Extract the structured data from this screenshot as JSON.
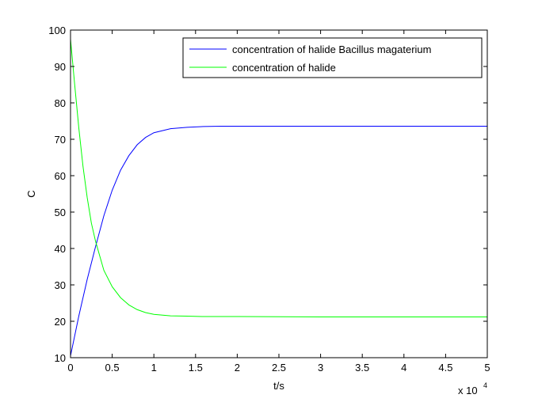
{
  "chart_data": {
    "type": "line",
    "xlabel": "t/s",
    "ylabel": "C",
    "x_multiplier_label": "x 10",
    "x_multiplier_exponent": "4",
    "xlim": [
      0,
      5
    ],
    "ylim": [
      10,
      100
    ],
    "xticks": [
      0,
      0.5,
      1,
      1.5,
      2,
      2.5,
      3,
      3.5,
      4,
      4.5,
      5
    ],
    "xtick_labels": [
      "0",
      "0.5",
      "1",
      "1.5",
      "2",
      "2.5",
      "3",
      "3.5",
      "4",
      "4.5",
      "5"
    ],
    "yticks": [
      10,
      20,
      30,
      40,
      50,
      60,
      70,
      80,
      90,
      100
    ],
    "ytick_labels": [
      "10",
      "20",
      "30",
      "40",
      "50",
      "60",
      "70",
      "80",
      "90",
      "100"
    ],
    "grid": false,
    "legend_position": "top-right",
    "series": [
      {
        "name": "concentration of halide Bacillus magaterium",
        "color": "#0000ff",
        "x": [
          0,
          0.1,
          0.2,
          0.3,
          0.4,
          0.5,
          0.6,
          0.7,
          0.8,
          0.9,
          1.0,
          1.2,
          1.4,
          1.6,
          1.8,
          2.0,
          3.0,
          4.0,
          5.0
        ],
        "y": [
          10.5,
          21.5,
          31.5,
          40.5,
          49.0,
          56.0,
          61.5,
          65.5,
          68.5,
          70.5,
          71.8,
          72.9,
          73.3,
          73.5,
          73.6,
          73.6,
          73.6,
          73.6,
          73.6
        ]
      },
      {
        "name": "concentration of halide",
        "color": "#00ff00",
        "x": [
          0,
          0.05,
          0.1,
          0.15,
          0.2,
          0.25,
          0.3,
          0.35,
          0.4,
          0.5,
          0.6,
          0.7,
          0.8,
          0.9,
          1.0,
          1.2,
          1.4,
          1.6,
          2.0,
          3.0,
          4.0,
          5.0
        ],
        "y": [
          97.5,
          85.0,
          73.0,
          62.5,
          54.0,
          47.0,
          42.0,
          38.0,
          34.0,
          29.5,
          26.5,
          24.5,
          23.2,
          22.4,
          21.9,
          21.5,
          21.4,
          21.3,
          21.3,
          21.2,
          21.2,
          21.2
        ]
      }
    ]
  }
}
